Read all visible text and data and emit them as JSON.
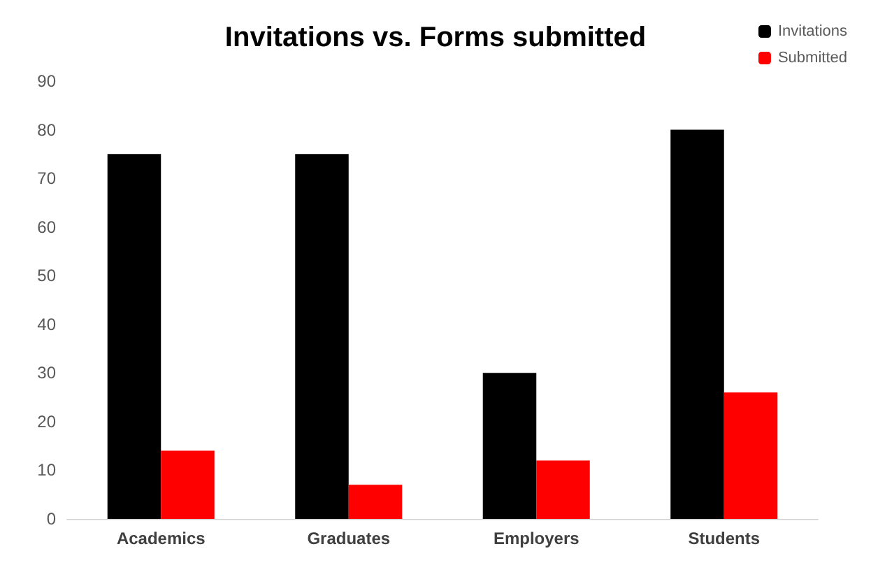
{
  "chart_data": {
    "type": "bar",
    "title": "Invitations vs. Forms submitted",
    "categories": [
      "Academics",
      "Graduates",
      "Employers",
      "Students"
    ],
    "series": [
      {
        "name": "Invitations",
        "color": "#000000",
        "values": [
          75,
          75,
          30,
          80
        ]
      },
      {
        "name": "Submitted",
        "color": "#ff0000",
        "values": [
          14,
          7,
          12,
          26
        ]
      }
    ],
    "ylim": [
      0,
      90
    ],
    "yticks": [
      0,
      10,
      20,
      30,
      40,
      50,
      60,
      70,
      80,
      90
    ],
    "grid": false,
    "legend": "top right"
  }
}
